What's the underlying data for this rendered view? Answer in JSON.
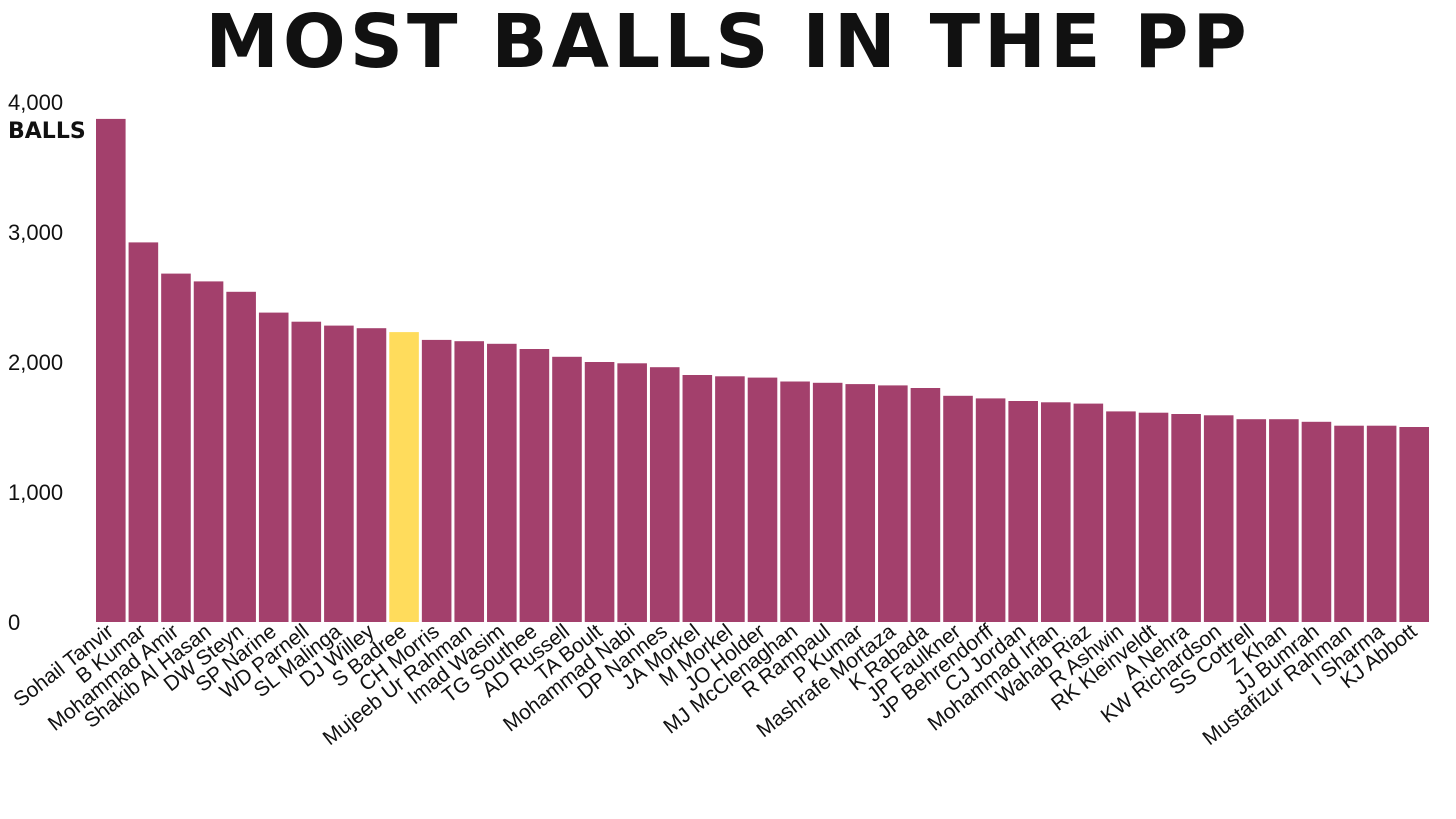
{
  "chart_data": {
    "type": "bar",
    "title": "Most balls in the PP",
    "ylabel": "BALLS",
    "ylim": [
      0,
      4000
    ],
    "yticks": [
      "0",
      "1,000",
      "2,000",
      "3,000",
      "4,000"
    ],
    "ytick_values": [
      0,
      1000,
      2000,
      3000,
      4000
    ],
    "grid": false,
    "bar_color": "#a3406c",
    "highlight_color": "#ffdc5c",
    "highlight_category": "S Badree",
    "categories": [
      "Sohail Tanvir",
      "B Kumar",
      "Mohammad Amir",
      "Shakib Al Hasan",
      "DW Steyn",
      "SP Narine",
      "WD Parnell",
      "SL Malinga",
      "DJ Willey",
      "S Badree",
      "CH Morris",
      "Mujeeb Ur Rahman",
      "Imad Wasim",
      "TG Southee",
      "AD Russell",
      "TA Boult",
      "Mohammad Nabi",
      "DP Nannes",
      "JA Morkel",
      "M Morkel",
      "JO Holder",
      "MJ McClenaghan",
      "R Rampaul",
      "P Kumar",
      "Mashrafe Mortaza",
      "K Rabada",
      "JP Faulkner",
      "JP Behrendorff",
      "CJ Jordan",
      "Mohammad Irfan",
      "Wahab Riaz",
      "R Ashwin",
      "RK Kleinveldt",
      "A Nehra",
      "KW Richardson",
      "SS Cottrell",
      "Z Khan",
      "JJ Bumrah",
      "Mustafizur Rahman",
      "I Sharma",
      "KJ Abbott"
    ],
    "values": [
      3870,
      2920,
      2680,
      2620,
      2540,
      2380,
      2310,
      2280,
      2260,
      2230,
      2170,
      2160,
      2140,
      2100,
      2040,
      2000,
      1990,
      1960,
      1900,
      1890,
      1880,
      1850,
      1840,
      1830,
      1820,
      1800,
      1740,
      1720,
      1700,
      1690,
      1680,
      1620,
      1610,
      1600,
      1590,
      1560,
      1560,
      1540,
      1510,
      1510,
      1500
    ]
  }
}
